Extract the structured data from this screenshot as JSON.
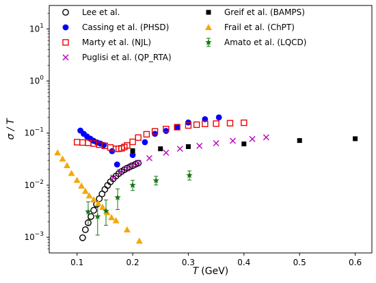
{
  "chart_data": {
    "type": "scatter",
    "xlabel_var": "T",
    "xlabel_unit": "(GeV)",
    "ylabel": "σ / T",
    "xlim": [
      0.05,
      0.63
    ],
    "ylim_log10": [
      -3.3,
      1.45
    ],
    "y_scale": "log",
    "grid": false,
    "legend_placement": "top (two columns)",
    "x_ticks": [
      {
        "value": 0.1,
        "label": "0.1"
      },
      {
        "value": 0.2,
        "label": "0.2"
      },
      {
        "value": 0.3,
        "label": "0.3"
      },
      {
        "value": 0.4,
        "label": "0.4"
      },
      {
        "value": 0.5,
        "label": "0.5"
      },
      {
        "value": 0.6,
        "label": "0.6"
      }
    ],
    "y_ticks": [
      {
        "value": 0.001,
        "base": "10",
        "exp": "−3"
      },
      {
        "value": 0.01,
        "base": "10",
        "exp": "−2"
      },
      {
        "value": 0.1,
        "base": "10",
        "exp": "−1"
      },
      {
        "value": 1,
        "base": "10",
        "exp": "0"
      },
      {
        "value": 10,
        "base": "10",
        "exp": "1"
      }
    ],
    "series": [
      {
        "name": "Lee et al.",
        "marker": "circle-open",
        "color": "#000000",
        "x": [
          0.11,
          0.115,
          0.12,
          0.125,
          0.13,
          0.135,
          0.14,
          0.145,
          0.15,
          0.155,
          0.16,
          0.165,
          0.17,
          0.175,
          0.18,
          0.185,
          0.19,
          0.195,
          0.2,
          0.205,
          0.21
        ],
        "y": [
          0.00098,
          0.0014,
          0.0019,
          0.0025,
          0.0033,
          0.0043,
          0.0055,
          0.0068,
          0.0083,
          0.0099,
          0.0116,
          0.0133,
          0.015,
          0.0167,
          0.0183,
          0.0198,
          0.0212,
          0.0225,
          0.0238,
          0.0252,
          0.0265
        ]
      },
      {
        "name": "Cassing et al. (PHSD)",
        "marker": "circle-filled",
        "color": "#0000ff",
        "x": [
          0.106,
          0.112,
          0.118,
          0.124,
          0.13,
          0.136,
          0.142,
          0.148,
          0.163,
          0.172,
          0.2,
          0.222,
          0.24,
          0.26,
          0.28,
          0.3,
          0.33,
          0.355
        ],
        "y": [
          0.112,
          0.097,
          0.086,
          0.078,
          0.071,
          0.066,
          0.063,
          0.059,
          0.045,
          0.025,
          0.038,
          0.067,
          0.097,
          0.11,
          0.13,
          0.16,
          0.185,
          0.2
        ]
      },
      {
        "name": "Marty et al. (NJL)",
        "marker": "square-open",
        "color": "#ee0000",
        "x": [
          0.1,
          0.11,
          0.12,
          0.13,
          0.14,
          0.15,
          0.16,
          0.17,
          0.175,
          0.18,
          0.185,
          0.19,
          0.2,
          0.21,
          0.225,
          0.24,
          0.26,
          0.28,
          0.3,
          0.315,
          0.33,
          0.35,
          0.375,
          0.4
        ],
        "y": [
          0.067,
          0.066,
          0.065,
          0.063,
          0.06,
          0.057,
          0.053,
          0.05,
          0.05,
          0.051,
          0.054,
          0.058,
          0.068,
          0.082,
          0.095,
          0.108,
          0.12,
          0.13,
          0.14,
          0.145,
          0.15,
          0.152,
          0.155,
          0.158
        ]
      },
      {
        "name": "Puglisi et al. (QP_RTA)",
        "marker": "x",
        "color": "#bb00bb",
        "x": [
          0.165,
          0.178,
          0.19,
          0.2,
          0.21,
          0.23,
          0.26,
          0.285,
          0.32,
          0.35,
          0.38,
          0.415,
          0.44
        ],
        "y": [
          0.014,
          0.018,
          0.021,
          0.024,
          0.027,
          0.033,
          0.042,
          0.05,
          0.057,
          0.064,
          0.071,
          0.077,
          0.083
        ]
      },
      {
        "name": "Greif et al. (BAMPS)",
        "marker": "square-filled",
        "color": "#000000",
        "x": [
          0.2,
          0.25,
          0.3,
          0.4,
          0.5,
          0.6
        ],
        "y": [
          0.046,
          0.05,
          0.055,
          0.062,
          0.072,
          0.078
        ]
      },
      {
        "name": "Frail et al. (ChPT)",
        "marker": "triangle",
        "color": "#f5a80a",
        "x": [
          0.065,
          0.074,
          0.082,
          0.09,
          0.1,
          0.108,
          0.115,
          0.122,
          0.13,
          0.138,
          0.146,
          0.154,
          0.162,
          0.17,
          0.19,
          0.212
        ],
        "y": [
          0.042,
          0.032,
          0.024,
          0.017,
          0.0125,
          0.0097,
          0.0077,
          0.0063,
          0.0053,
          0.0045,
          0.0038,
          0.003,
          0.0024,
          0.0021,
          0.0014,
          0.00085
        ]
      },
      {
        "name": "Amato et al. (LQCD)",
        "marker": "star",
        "color": "#117711",
        "x": [
          0.12,
          0.137,
          0.152,
          0.173,
          0.2,
          0.242,
          0.302
        ],
        "y": [
          0.0031,
          0.0025,
          0.0032,
          0.0058,
          0.01,
          0.0123,
          0.0155
        ],
        "y_low": [
          0.0017,
          0.0011,
          0.0017,
          0.0034,
          0.0079,
          0.0101,
          0.0126
        ],
        "y_high": [
          0.0048,
          0.0039,
          0.0052,
          0.0085,
          0.0124,
          0.0148,
          0.0188
        ]
      }
    ]
  }
}
